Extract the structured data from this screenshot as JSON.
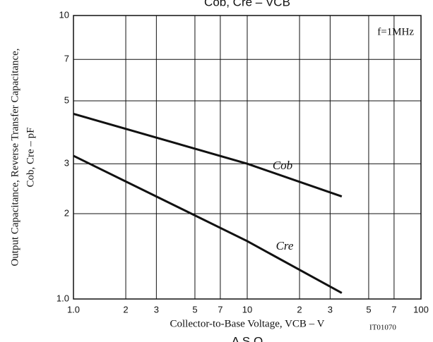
{
  "chart_data": {
    "type": "line",
    "title": "Cob, Cre – VCB",
    "x_label": "Collector-to-Base Voltage, VCB – V",
    "y_label": [
      "Output Capacitance, Reverse Transfer Capacitance,",
      "Cob, Cre – pF"
    ],
    "x": [
      1,
      10,
      35
    ],
    "series": [
      {
        "name": "Cob",
        "color": "#111111",
        "values": [
          4.5,
          3.0,
          2.3
        ]
      },
      {
        "name": "Cre",
        "color": "#111111",
        "values": [
          3.2,
          1.6,
          1.05
        ]
      }
    ],
    "xlim": [
      1,
      100
    ],
    "ylim": [
      1,
      10
    ],
    "xlog": true,
    "ylog": true,
    "grid": true,
    "xticks": [
      {
        "value": 1,
        "label": "1.0"
      },
      2,
      3,
      5,
      7,
      10,
      {
        "value": 20,
        "label": "2"
      },
      {
        "value": 30,
        "label": "3"
      },
      {
        "value": 50,
        "label": "5"
      },
      {
        "value": 70,
        "label": "7"
      },
      100
    ],
    "yticks": [
      {
        "value": 1,
        "label": "1.0"
      },
      2,
      3,
      5,
      7,
      10
    ],
    "annotations": [
      "f=1MHz",
      "IT01070",
      "A S O"
    ]
  }
}
